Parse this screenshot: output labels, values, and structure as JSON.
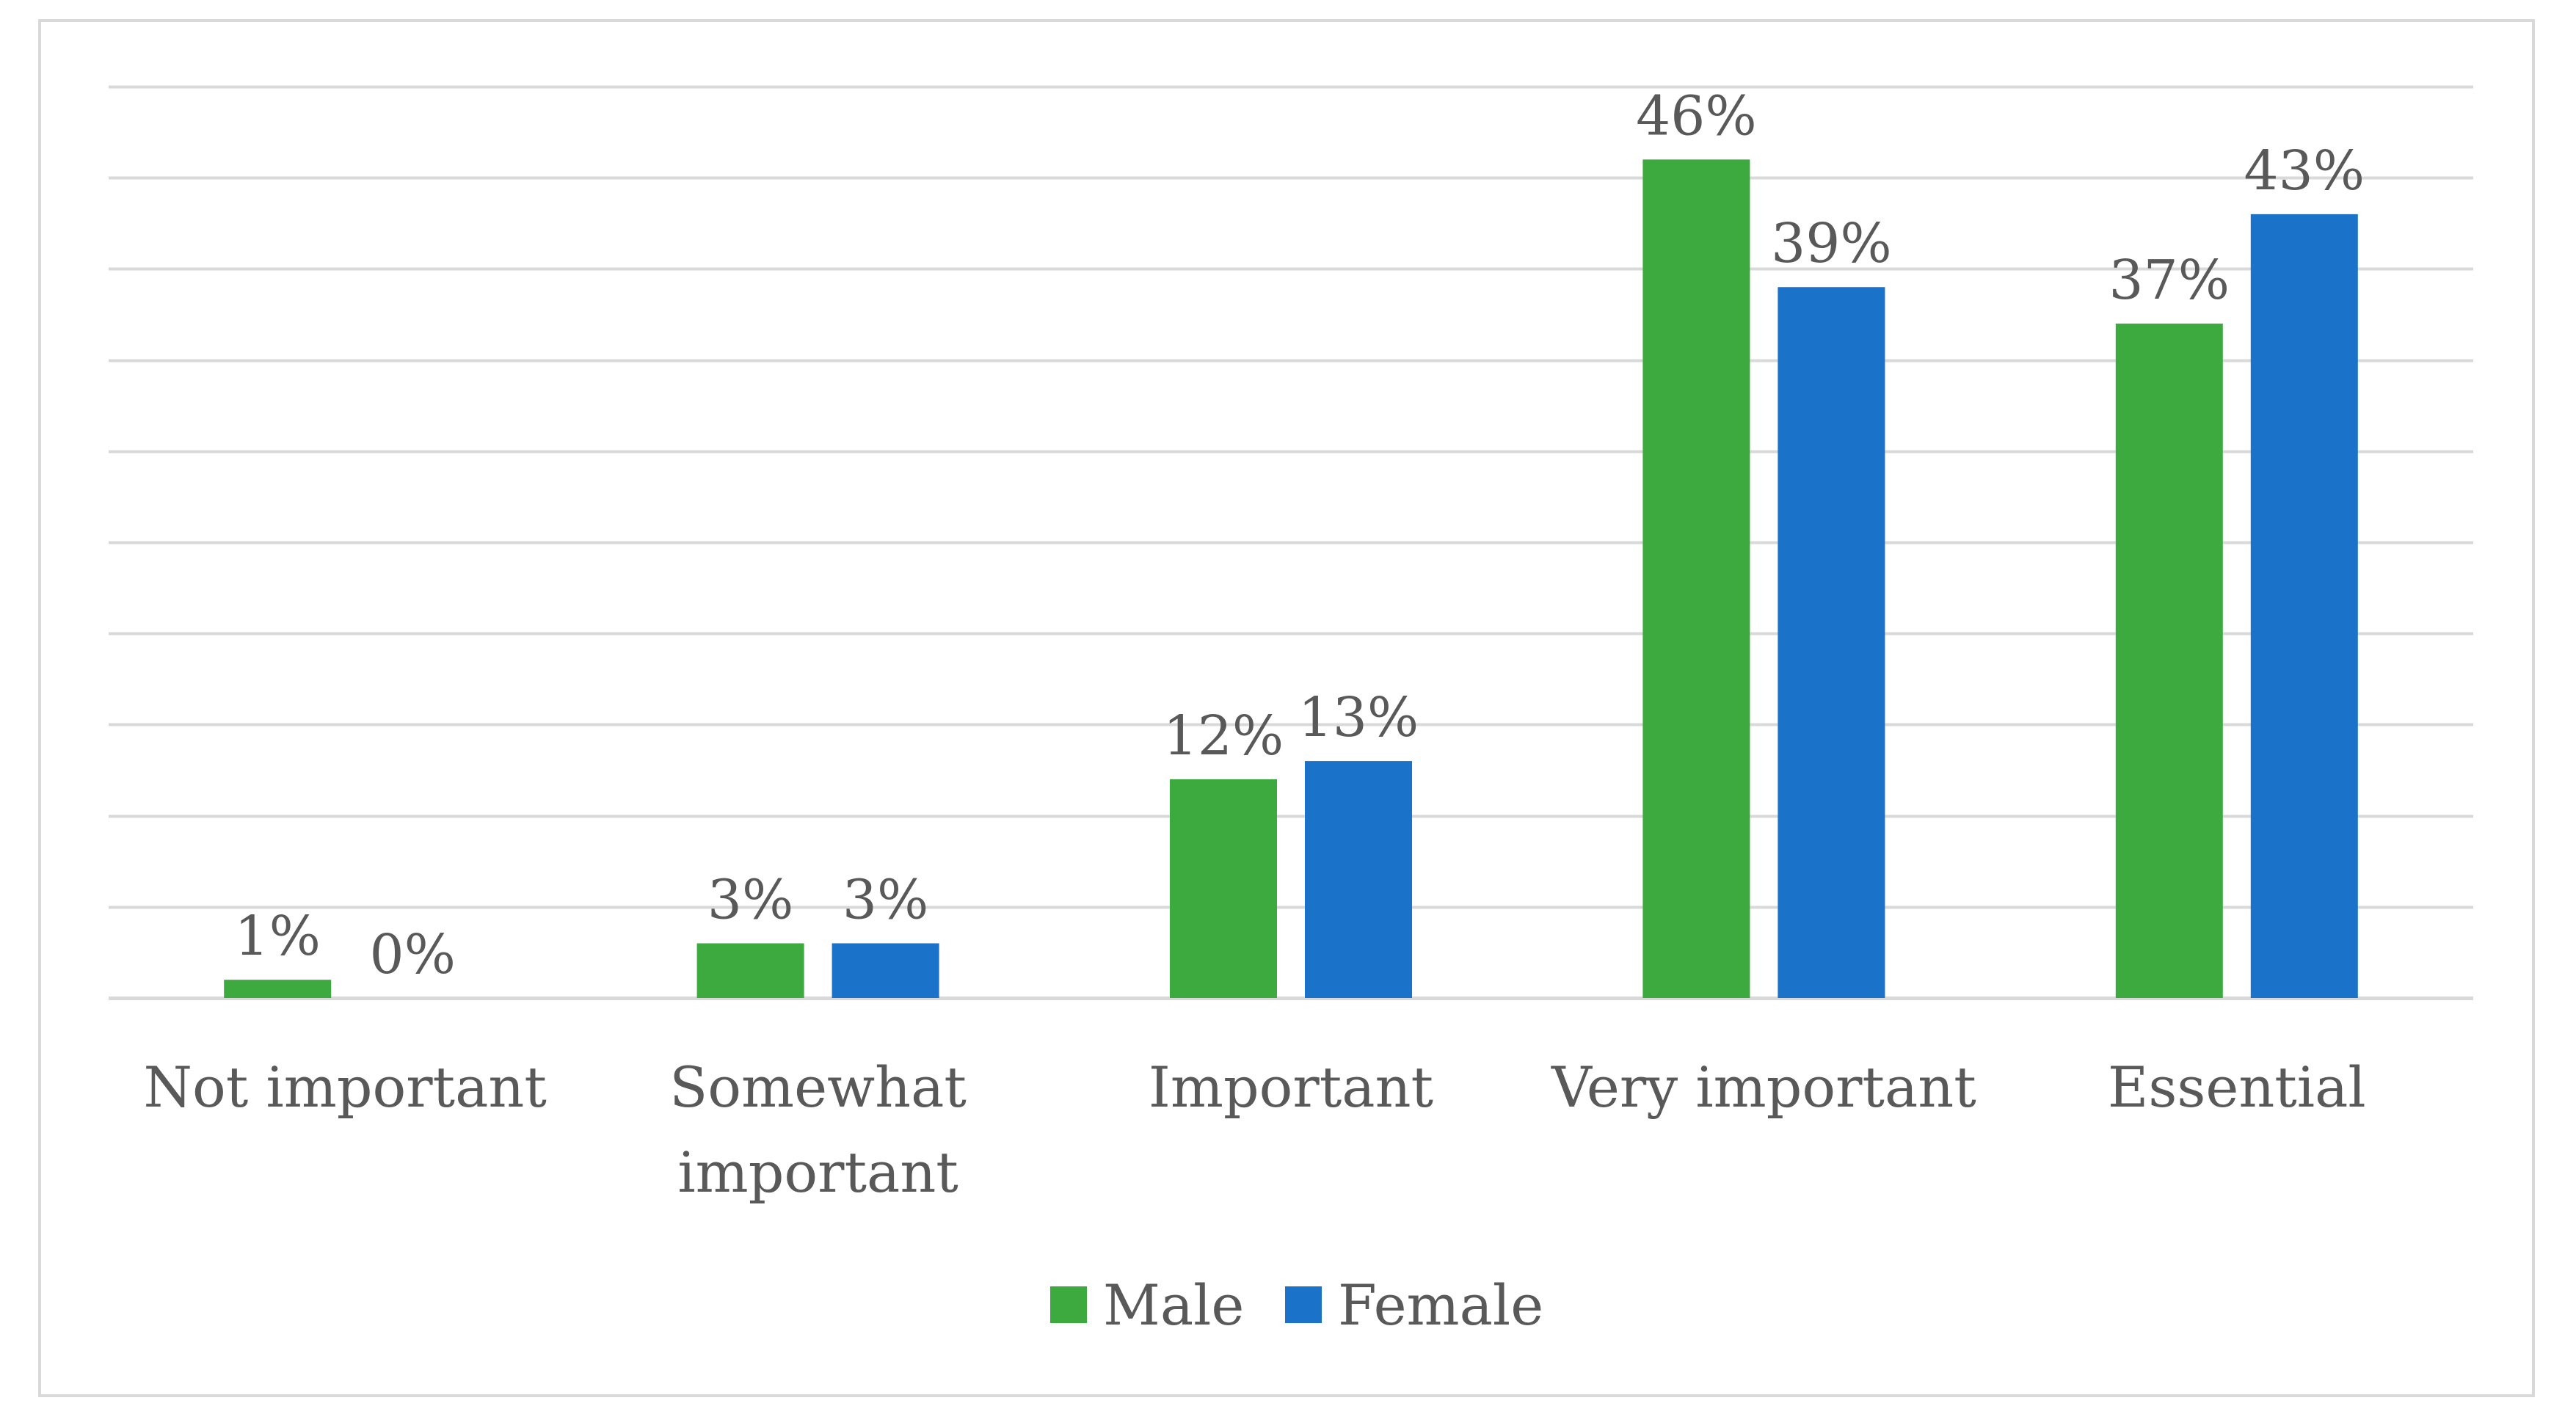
{
  "chart_data": {
    "type": "bar",
    "title": "",
    "xlabel": "",
    "ylabel": "",
    "ylim": [
      0,
      50
    ],
    "grid": true,
    "legend_position": "bottom",
    "categories": [
      [
        "Not important"
      ],
      [
        "Somewhat",
        "important"
      ],
      [
        "Important"
      ],
      [
        "Very important"
      ],
      [
        "Essential"
      ]
    ],
    "series": [
      {
        "name": "Male",
        "color": "#3daa3f",
        "values": [
          1,
          3,
          12,
          46,
          37
        ],
        "labels": [
          "1%",
          "3%",
          "12%",
          "46%",
          "37%"
        ]
      },
      {
        "name": "Female",
        "color": "#1a73c8",
        "values": [
          0,
          3,
          13,
          39,
          43
        ],
        "labels": [
          "0%",
          "3%",
          "13%",
          "39%",
          "43%"
        ]
      }
    ]
  }
}
